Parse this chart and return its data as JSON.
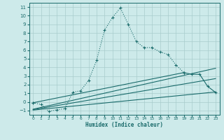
{
  "xlabel": "Humidex (Indice chaleur)",
  "ylabel": "",
  "background_color": "#cdeaea",
  "grid_color": "#a8cccc",
  "line_color": "#1a6b6b",
  "xlim": [
    -0.5,
    23.5
  ],
  "ylim": [
    -1.5,
    11.5
  ],
  "xticks": [
    0,
    1,
    2,
    3,
    4,
    5,
    6,
    7,
    8,
    9,
    10,
    11,
    12,
    13,
    14,
    15,
    16,
    17,
    18,
    19,
    20,
    21,
    22,
    23
  ],
  "yticks": [
    -1,
    0,
    1,
    2,
    3,
    4,
    5,
    6,
    7,
    8,
    9,
    10,
    11
  ],
  "series": [
    {
      "x": [
        0,
        1,
        2,
        3,
        4,
        5,
        6,
        7,
        8,
        9,
        10,
        11,
        12,
        13,
        14,
        15,
        16,
        17,
        18,
        19
      ],
      "y": [
        -0.1,
        -0.3,
        -1.1,
        -0.9,
        -0.8,
        1.1,
        1.3,
        2.5,
        4.8,
        8.3,
        9.8,
        10.9,
        9.0,
        7.0,
        6.3,
        6.3,
        5.8,
        5.5,
        4.3,
        3.4
      ],
      "style": "dotted",
      "marker": "+"
    },
    {
      "x": [
        0,
        19,
        20,
        21,
        22,
        23
      ],
      "y": [
        -0.1,
        3.4,
        3.2,
        3.2,
        1.8,
        1.1
      ],
      "style": "solid",
      "marker": "+"
    },
    {
      "x": [
        0,
        23
      ],
      "y": [
        -0.85,
        3.9
      ],
      "style": "solid",
      "marker": null
    },
    {
      "x": [
        0,
        23
      ],
      "y": [
        -0.9,
        2.7
      ],
      "style": "solid",
      "marker": null
    },
    {
      "x": [
        0,
        23
      ],
      "y": [
        -0.95,
        1.15
      ],
      "style": "solid",
      "marker": null
    }
  ]
}
